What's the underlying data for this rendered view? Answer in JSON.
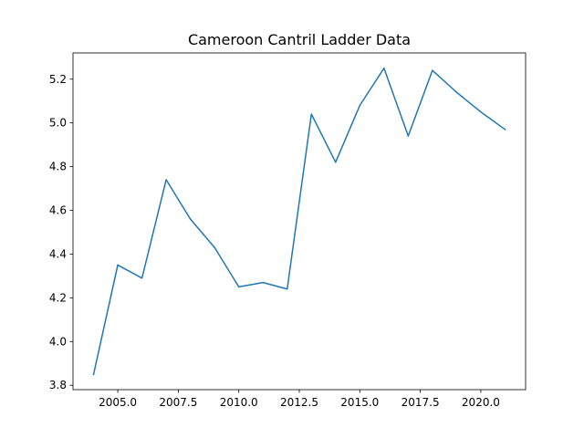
{
  "chart_data": {
    "type": "line",
    "title": "Cameroon Cantril Ladder Data",
    "xlabel": "",
    "ylabel": "",
    "xlim": [
      2003.15,
      2021.85
    ],
    "ylim": [
      3.78,
      5.32
    ],
    "x_ticks": [
      2005.0,
      2007.5,
      2010.0,
      2012.5,
      2015.0,
      2017.5,
      2020.0
    ],
    "x_tick_labels": [
      "2005.0",
      "2007.5",
      "2010.0",
      "2012.5",
      "2015.0",
      "2017.5",
      "2020.0"
    ],
    "y_ticks": [
      3.8,
      4.0,
      4.2,
      4.4,
      4.6,
      4.8,
      5.0,
      5.2
    ],
    "y_tick_labels": [
      "3.8",
      "4.0",
      "4.2",
      "4.4",
      "4.6",
      "4.8",
      "5.0",
      "5.2"
    ],
    "grid": false,
    "series": [
      {
        "color": "#1f77b4",
        "x": [
          2004,
          2005,
          2006,
          2007,
          2008,
          2009,
          2010,
          2011,
          2012,
          2013,
          2014,
          2015,
          2016,
          2017,
          2018,
          2019,
          2020,
          2021
        ],
        "values": [
          3.85,
          4.35,
          4.29,
          4.74,
          4.56,
          4.43,
          4.25,
          4.27,
          4.24,
          5.04,
          4.82,
          5.08,
          5.25,
          4.94,
          5.24,
          5.14,
          5.05,
          4.97
        ]
      }
    ]
  }
}
